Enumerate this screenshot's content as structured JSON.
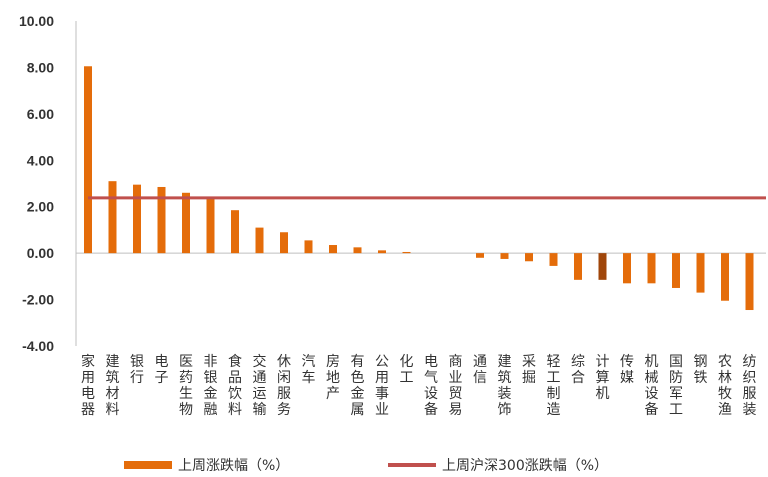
{
  "chart_data": {
    "type": "bar",
    "title": "",
    "xlabel": "",
    "ylabel": "",
    "ylim": [
      -4.0,
      10.0
    ],
    "yticks": [
      "10.00",
      "8.00",
      "6.00",
      "4.00",
      "2.00",
      "0.00",
      "-2.00",
      "-4.00"
    ],
    "categories": [
      "家用电器",
      "建筑材料",
      "银行",
      "电子",
      "医药生物",
      "非银金融",
      "食品饮料",
      "交通运输",
      "休闲服务",
      "汽车",
      "房地产",
      "有色金属",
      "公用事业",
      "化工",
      "电气设备",
      "商业贸易",
      "通信",
      "建筑装饰",
      "采掘",
      "轻工制造",
      "综合",
      "计算机",
      "传媒",
      "机械设备",
      "国防军工",
      "钢铁",
      "农林牧渔",
      "纺织服装"
    ],
    "series": [
      {
        "name": "上周涨跌幅（%）",
        "values": [
          8.05,
          3.1,
          2.95,
          2.85,
          2.6,
          2.4,
          1.85,
          1.1,
          0.9,
          0.55,
          0.35,
          0.25,
          0.12,
          0.05,
          0.0,
          0.0,
          -0.2,
          -0.25,
          -0.35,
          -0.55,
          -1.15,
          -1.15,
          -1.3,
          -1.3,
          -1.5,
          -1.7,
          -2.05,
          -2.45
        ],
        "color": "#E46C0A",
        "highlight_index": 21,
        "highlight_color": "#A0460A"
      },
      {
        "name": "上周沪深300涨跌幅（%）",
        "type": "line",
        "value": 2.38,
        "color": "#C0504D"
      }
    ],
    "legend_position": "bottom",
    "grid": false
  }
}
